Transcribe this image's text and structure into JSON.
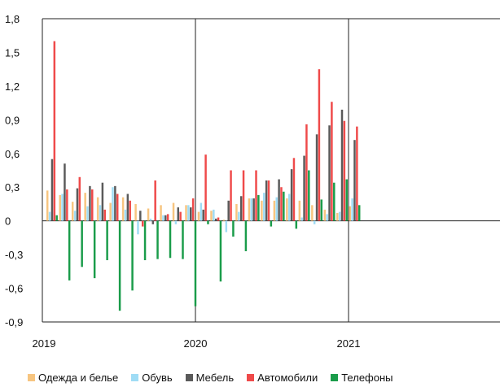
{
  "chart_data": {
    "type": "bar",
    "title": "",
    "xlabel": "",
    "ylabel": "",
    "ylim": [
      -0.9,
      1.8
    ],
    "yticks": [
      "1,8",
      "1,5",
      "1,2",
      "0,9",
      "0,6",
      "0,3",
      "0",
      "-0,3",
      "-0,6",
      "-0,9"
    ],
    "xticks": [
      "2019",
      "2020",
      "2021"
    ],
    "months": [
      "2019-01",
      "2019-02",
      "2019-03",
      "2019-04",
      "2019-05",
      "2019-06",
      "2019-07",
      "2019-08",
      "2019-09",
      "2019-10",
      "2019-11",
      "2019-12",
      "2020-01",
      "2020-02",
      "2020-03",
      "2020-04",
      "2020-05",
      "2020-06",
      "2020-07",
      "2020-08",
      "2020-09",
      "2020-10",
      "2020-11",
      "2020-12",
      "2021-01"
    ],
    "grid": "vertical lines at year boundaries",
    "legend_position": "bottom",
    "series": [
      {
        "name": "Одежда и белье",
        "color": "#f7c580",
        "values": [
          0.27,
          0.23,
          0.17,
          0.25,
          0.21,
          0.16,
          0.21,
          0.15,
          0.11,
          0.14,
          0.16,
          0.14,
          0.08,
          0.09,
          0.01,
          0.15,
          0.2,
          0.18,
          0.18,
          0.2,
          0.18,
          0.14,
          0.1,
          0.07,
          0.13
        ]
      },
      {
        "name": "Обувь",
        "color": "#9fdcf5",
        "values": [
          0.08,
          0.24,
          0.09,
          0.13,
          0.14,
          0.3,
          0.1,
          -0.12,
          0.02,
          0.05,
          -0.03,
          0.14,
          0.16,
          0.1,
          -0.1,
          0.08,
          0.2,
          0.25,
          0.21,
          0.24,
          0.03,
          -0.03,
          0.06,
          0.08,
          0.2
        ]
      },
      {
        "name": "Мебель",
        "color": "#5a5a5a",
        "values": [
          0.55,
          0.51,
          0.29,
          0.31,
          0.34,
          0.31,
          0.24,
          0.09,
          -0.03,
          0.05,
          0.12,
          0.12,
          0.1,
          0.02,
          0.18,
          0.22,
          0.2,
          0.36,
          0.37,
          0.46,
          0.58,
          0.77,
          0.85,
          0.99,
          0.72
        ]
      },
      {
        "name": "Автомобили",
        "color": "#ef4a4a",
        "values": [
          1.6,
          0.28,
          0.39,
          0.28,
          0.1,
          0.24,
          0.18,
          -0.05,
          0.36,
          0.06,
          0.08,
          0.2,
          0.59,
          0.03,
          0.45,
          0.45,
          0.45,
          0.36,
          0.3,
          0.56,
          0.86,
          1.35,
          1.06,
          0.89,
          0.84
        ]
      },
      {
        "name": "Телефоны",
        "color": "#1a9c4a",
        "values": [
          0.05,
          -0.53,
          -0.41,
          -0.51,
          -0.35,
          -0.8,
          -0.62,
          -0.35,
          -0.34,
          -0.33,
          -0.34,
          -0.76,
          -0.03,
          -0.54,
          -0.14,
          -0.27,
          0.23,
          -0.05,
          0.26,
          -0.07,
          0.45,
          0.19,
          0.34,
          0.37,
          0.14
        ]
      }
    ]
  }
}
